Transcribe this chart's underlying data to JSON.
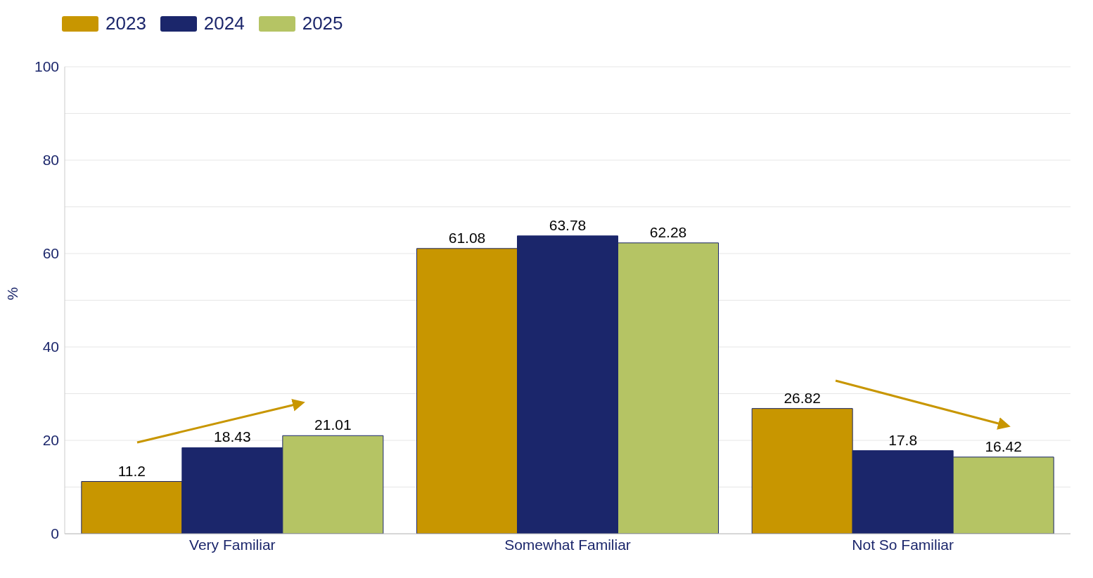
{
  "chart_data": {
    "type": "bar",
    "categories": [
      "Very Familiar",
      "Somewhat Familiar",
      "Not So Familiar"
    ],
    "series": [
      {
        "name": "2023",
        "color": "#c89600",
        "values": [
          11.2,
          61.08,
          26.82
        ]
      },
      {
        "name": "2024",
        "color": "#1b266b",
        "values": [
          18.43,
          63.78,
          17.8
        ]
      },
      {
        "name": "2025",
        "color": "#b5c464",
        "values": [
          21.01,
          62.28,
          16.42
        ]
      }
    ],
    "ylabel": "%",
    "ylim": [
      0,
      100
    ],
    "yticks": [
      0,
      {
        "value": 10,
        "label": null
      },
      20,
      {
        "value": 30,
        "label": null
      },
      40,
      {
        "value": 50,
        "label": null
      },
      60,
      {
        "value": 70,
        "label": null
      },
      80,
      {
        "value": 90,
        "label": null
      },
      100
    ],
    "grid": "y",
    "legend": "top left",
    "data_labels": true
  }
}
